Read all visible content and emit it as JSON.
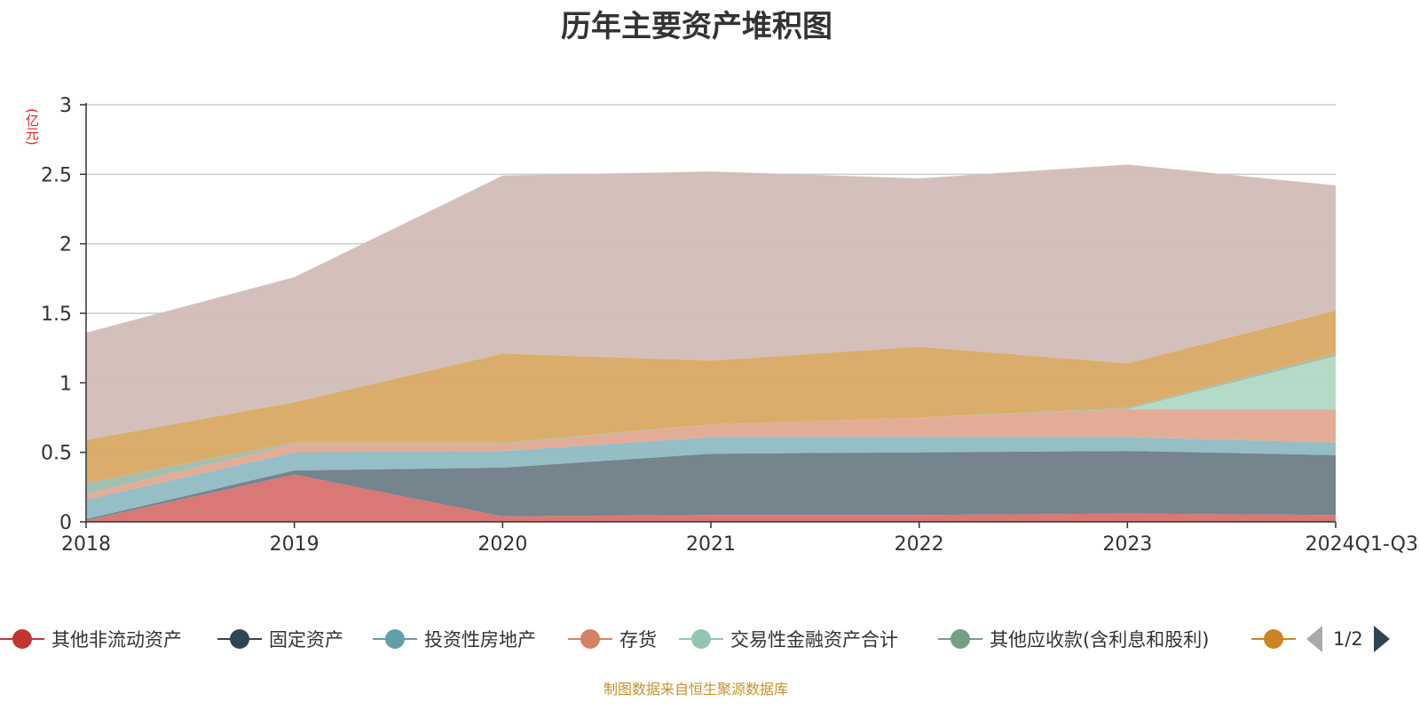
{
  "title": "历年主要资产堆积图",
  "unit_label": "(亿元)",
  "source": "制图数据来自恒生聚源数据库",
  "pager": {
    "text": "1/2"
  },
  "legend": [
    {
      "label": "其他非流动资产",
      "color": "#c23531"
    },
    {
      "label": "固定资产",
      "color": "#2f4554"
    },
    {
      "label": "投资性房地产",
      "color": "#61a0a8"
    },
    {
      "label": "存货",
      "color": "#d48265"
    },
    {
      "label": "交易性金融资产合计",
      "color": "#91c7ae"
    },
    {
      "label": "其他应收款(含利息和股利)",
      "color": "#749f83"
    },
    {
      "label": "",
      "color": "#ca8622"
    }
  ],
  "chart_data": {
    "type": "area",
    "stacked": true,
    "title": "历年主要资产堆积图",
    "ylabel": "(亿元)",
    "ylim": [
      0,
      3
    ],
    "yticks": [
      "0",
      "0.5",
      "1",
      "1.5",
      "2",
      "2.5",
      "3"
    ],
    "categories": [
      "2018",
      "2019",
      "2020",
      "2021",
      "2022",
      "2023",
      "2024Q1-Q3"
    ],
    "grid": true,
    "series": [
      {
        "name": "其他非流动资产",
        "color": "#d7726f",
        "values": [
          0.01,
          0.34,
          0.04,
          0.05,
          0.05,
          0.06,
          0.05
        ]
      },
      {
        "name": "固定资产",
        "color": "#6f7d88",
        "values": [
          0.01,
          0.03,
          0.35,
          0.44,
          0.45,
          0.45,
          0.43
        ]
      },
      {
        "name": "投资性房地产",
        "color": "#8fbcc2",
        "values": [
          0.14,
          0.13,
          0.12,
          0.12,
          0.11,
          0.1,
          0.09
        ]
      },
      {
        "name": "存货",
        "color": "#e2a890",
        "values": [
          0.04,
          0.06,
          0.05,
          0.09,
          0.14,
          0.2,
          0.24
        ]
      },
      {
        "name": "交易性金融资产合计",
        "color": "#b0d8c5",
        "values": [
          0.0,
          0.0,
          0.0,
          0.0,
          0.0,
          0.0,
          0.38
        ]
      },
      {
        "name": "其他应收款(含利息和股利)",
        "color": "#9fbda9",
        "values": [
          0.08,
          0.01,
          0.01,
          0.0,
          0.0,
          0.01,
          0.02
        ]
      },
      {
        "name": "",
        "color": "#d9a963",
        "values": [
          0.31,
          0.29,
          0.64,
          0.46,
          0.51,
          0.32,
          0.31
        ]
      },
      {
        "name": "",
        "color": "#d1bdb7",
        "values": [
          0.77,
          0.9,
          1.28,
          1.36,
          1.21,
          1.43,
          0.9
        ]
      }
    ]
  }
}
